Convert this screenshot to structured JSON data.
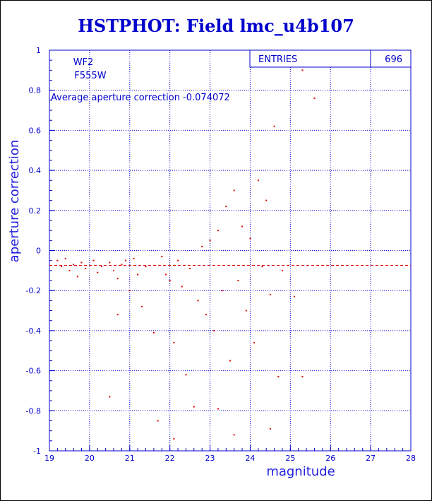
{
  "title": "HSTPHOT: Field lmc_u4b107",
  "chart_data": {
    "type": "scatter",
    "xlabel": "magnitude",
    "ylabel": "aperture correction",
    "xlim": [
      19,
      28
    ],
    "ylim": [
      -1,
      1
    ],
    "xticks": [
      "19",
      "20",
      "21",
      "22",
      "23",
      "24",
      "25",
      "26",
      "27",
      "28"
    ],
    "yticks": [
      "-1",
      "-0.8",
      "-0.6",
      "-0.4",
      "-0.2",
      "0",
      "0.2",
      "0.4",
      "0.6",
      "0.8",
      "1"
    ],
    "grid": true,
    "annotations": {
      "detector": "WF2",
      "filter": "F555W",
      "average_text": "Average aperture correction -0.074072",
      "entries_label": "ENTRIES",
      "entries_value": "696"
    },
    "average_line": -0.074072,
    "marker_color": "#dd0000",
    "sample_points": [
      [
        19.2,
        -0.05
      ],
      [
        19.3,
        -0.08
      ],
      [
        19.4,
        -0.04
      ],
      [
        19.5,
        -0.1
      ],
      [
        19.6,
        -0.07
      ],
      [
        19.7,
        -0.13
      ],
      [
        19.8,
        -0.06
      ],
      [
        19.9,
        -0.09
      ],
      [
        20.1,
        -0.05
      ],
      [
        20.2,
        -0.11
      ],
      [
        20.3,
        -0.08
      ],
      [
        20.5,
        -0.06
      ],
      [
        20.6,
        -0.1
      ],
      [
        20.7,
        -0.14
      ],
      [
        20.8,
        -0.07
      ],
      [
        20.9,
        -0.05
      ],
      [
        20.5,
        -0.73
      ],
      [
        20.7,
        -0.32
      ],
      [
        21.0,
        -0.2
      ],
      [
        21.1,
        -0.04
      ],
      [
        21.2,
        -0.12
      ],
      [
        21.3,
        -0.28
      ],
      [
        21.4,
        -0.08
      ],
      [
        21.6,
        -0.41
      ],
      [
        21.8,
        -0.03
      ],
      [
        21.9,
        -0.12
      ],
      [
        22.0,
        -0.15
      ],
      [
        22.1,
        -0.46
      ],
      [
        22.2,
        -0.05
      ],
      [
        22.3,
        -0.18
      ],
      [
        22.4,
        -0.62
      ],
      [
        22.5,
        -0.09
      ],
      [
        22.6,
        -0.78
      ],
      [
        22.7,
        -0.25
      ],
      [
        22.8,
        0.02
      ],
      [
        22.9,
        -0.32
      ],
      [
        23.0,
        0.05
      ],
      [
        23.1,
        -0.4
      ],
      [
        23.2,
        0.1
      ],
      [
        23.3,
        -0.2
      ],
      [
        23.4,
        0.22
      ],
      [
        23.5,
        -0.55
      ],
      [
        23.6,
        0.3
      ],
      [
        23.7,
        -0.15
      ],
      [
        23.8,
        0.12
      ],
      [
        23.9,
        -0.3
      ],
      [
        24.0,
        0.06
      ],
      [
        24.1,
        -0.46
      ],
      [
        24.2,
        0.35
      ],
      [
        24.3,
        -0.08
      ],
      [
        24.4,
        0.25
      ],
      [
        24.5,
        -0.22
      ],
      [
        24.6,
        0.62
      ],
      [
        24.8,
        -0.1
      ],
      [
        25.1,
        -0.23
      ],
      [
        25.3,
        0.9
      ],
      [
        25.6,
        0.76
      ],
      [
        25.3,
        -0.63
      ],
      [
        24.7,
        -0.63
      ],
      [
        23.2,
        -0.79
      ],
      [
        22.1,
        -0.94
      ],
      [
        21.7,
        -0.85
      ],
      [
        24.5,
        -0.89
      ],
      [
        23.6,
        -0.92
      ]
    ]
  }
}
